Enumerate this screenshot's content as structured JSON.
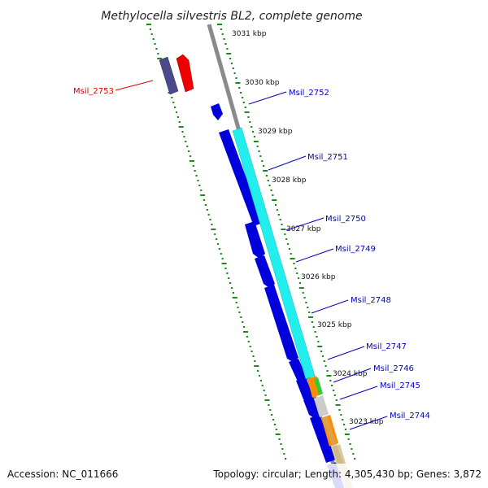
{
  "title": "Methylocella silvestris BL2, complete genome",
  "footer": {
    "accession": "Accession: NC_011666",
    "stats": "Topology: circular; Length: 4,305,430 bp; Genes: 3,872"
  },
  "ruler_labels": [
    "3031 kbp",
    "3030 kbp",
    "3029 kbp",
    "3028 kbp",
    "3027 kbp",
    "3026 kbp",
    "3025 kbp",
    "3024 kbp",
    "3023 kbp"
  ],
  "gene_labels": [
    {
      "name": "Msil_2753",
      "color": "#e00000"
    },
    {
      "name": "Msil_2752",
      "color": "#0000c0"
    },
    {
      "name": "Msil_2751",
      "color": "#0000c0"
    },
    {
      "name": "Msil_2750",
      "color": "#0000c0"
    },
    {
      "name": "Msil_2749",
      "color": "#0000c0"
    },
    {
      "name": "Msil_2748",
      "color": "#0000c0"
    },
    {
      "name": "Msil_2747",
      "color": "#0000c0"
    },
    {
      "name": "Msil_2746",
      "color": "#0000c0"
    },
    {
      "name": "Msil_2745",
      "color": "#0000c0"
    },
    {
      "name": "Msil_2744",
      "color": "#0000c0"
    }
  ],
  "colors": {
    "backbone": "#8a8a8a",
    "tick_green": "#1a8a1a",
    "cds_blue": "#0000dd",
    "cds_red": "#ee0000",
    "cds_purple": "#4a4a8a",
    "cds_cyan": "#22eeee",
    "cds_orange": "#ff8c00",
    "cds_green": "#33cc33",
    "cds_tan": "#d8c89a",
    "cds_gray": "#cccccc"
  }
}
